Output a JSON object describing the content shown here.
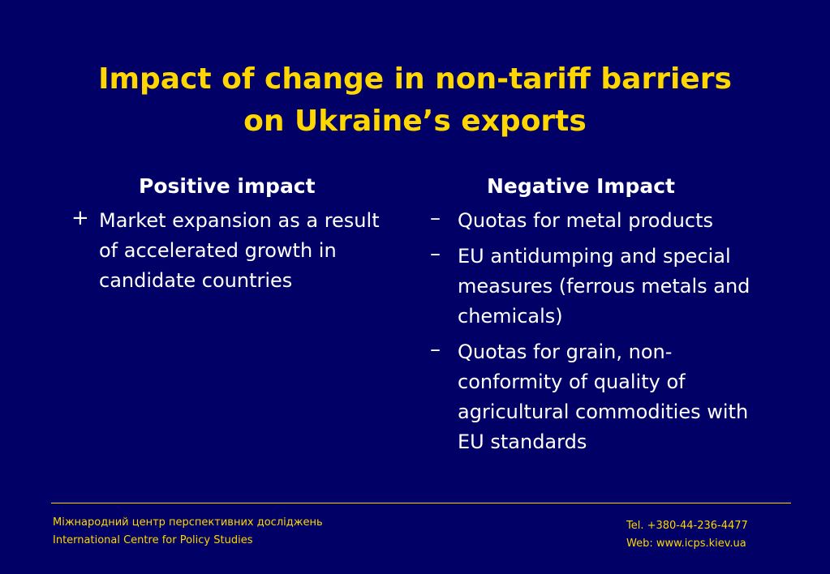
{
  "title": {
    "line1": "Impact of change in non-tariff barriers",
    "line2": "on Ukraine’s exports"
  },
  "positive": {
    "heading": "Positive impact",
    "items": [
      {
        "marker": "+",
        "text": "Market expansion as a result of accelerated growth in candidate countries"
      }
    ]
  },
  "negative": {
    "heading": "Negative Impact",
    "items": [
      {
        "marker": "–",
        "text": "Quotas for metal products"
      },
      {
        "marker": "–",
        "text": "EU antidumping and special measures (ferrous metals and chemicals)"
      },
      {
        "marker": "–",
        "text": "Quotas for grain, non-conformity of quality of agricultural commodities with EU standards"
      }
    ]
  },
  "footer": {
    "org_ua": "Міжнародний центр перспективних досліджень",
    "org_en": "International Centre for Policy Studies",
    "tel": "Tel. +380-44-236-4477",
    "web": "Web: www.icps.kiev.ua"
  },
  "colors": {
    "background": "#000066",
    "accent": "#FFD700",
    "text": "#FFFFFF"
  }
}
